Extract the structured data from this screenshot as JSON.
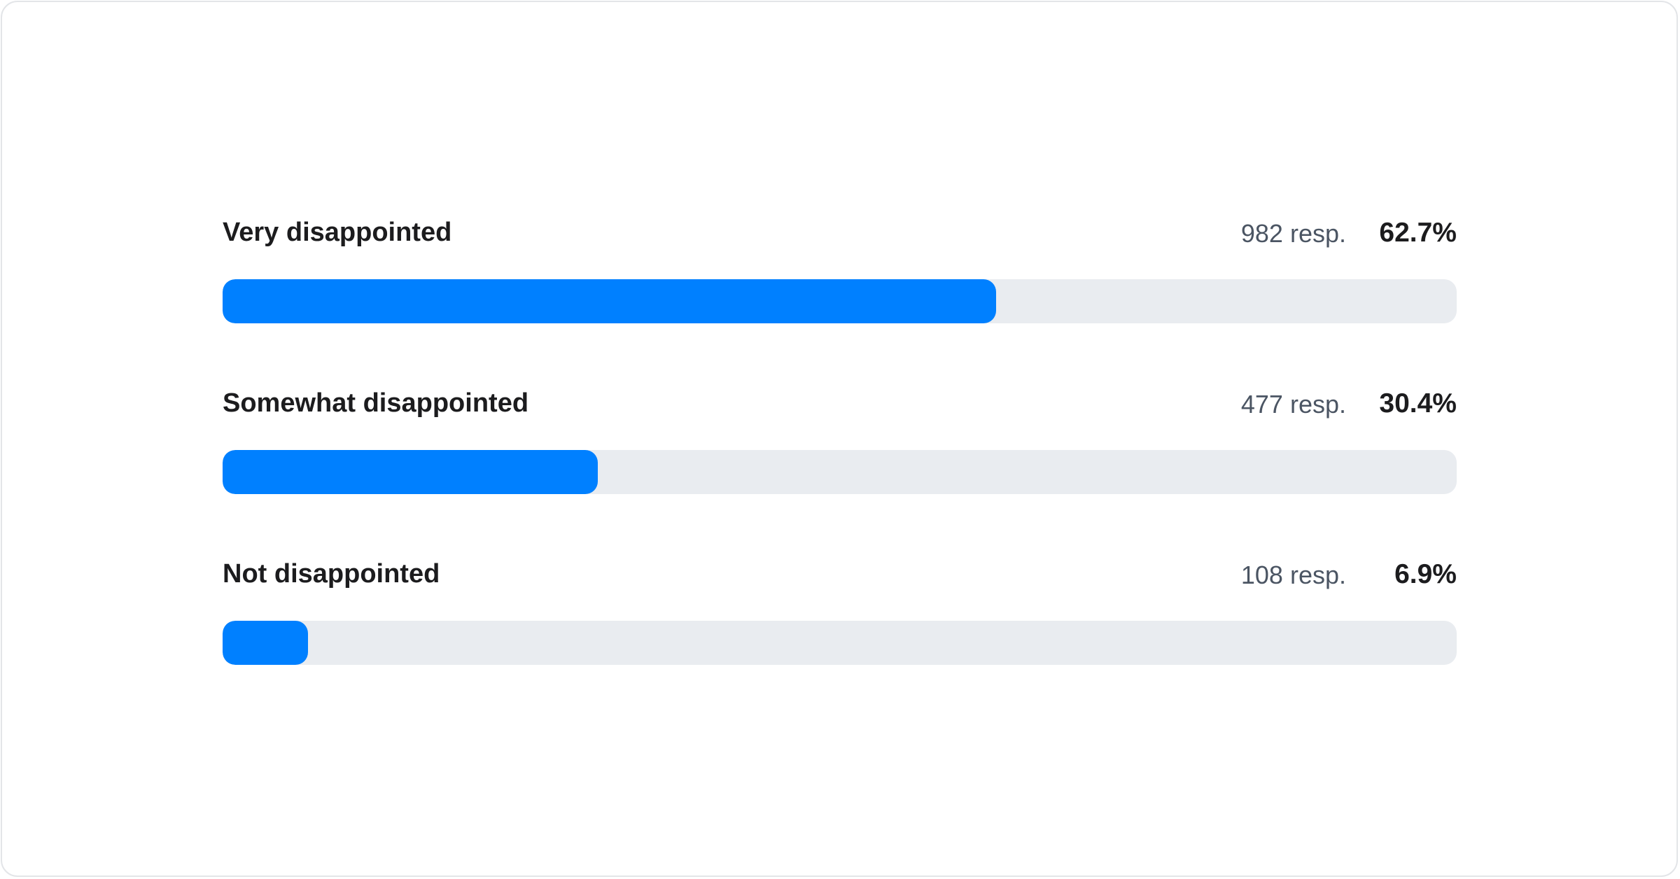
{
  "chart_data": {
    "type": "bar",
    "orientation": "horizontal",
    "categories": [
      "Very disappointed",
      "Somewhat disappointed",
      "Not disappointed"
    ],
    "responses": [
      982,
      477,
      108
    ],
    "response_labels": [
      "982 resp.",
      "477 resp.",
      "108 resp."
    ],
    "values": [
      62.7,
      30.4,
      6.9
    ],
    "value_labels": [
      "62.7%",
      "30.4%",
      "6.9%"
    ],
    "xlim": [
      0,
      100
    ],
    "colors": {
      "fill": "#0080ff",
      "track": "#e9ecf0"
    }
  }
}
